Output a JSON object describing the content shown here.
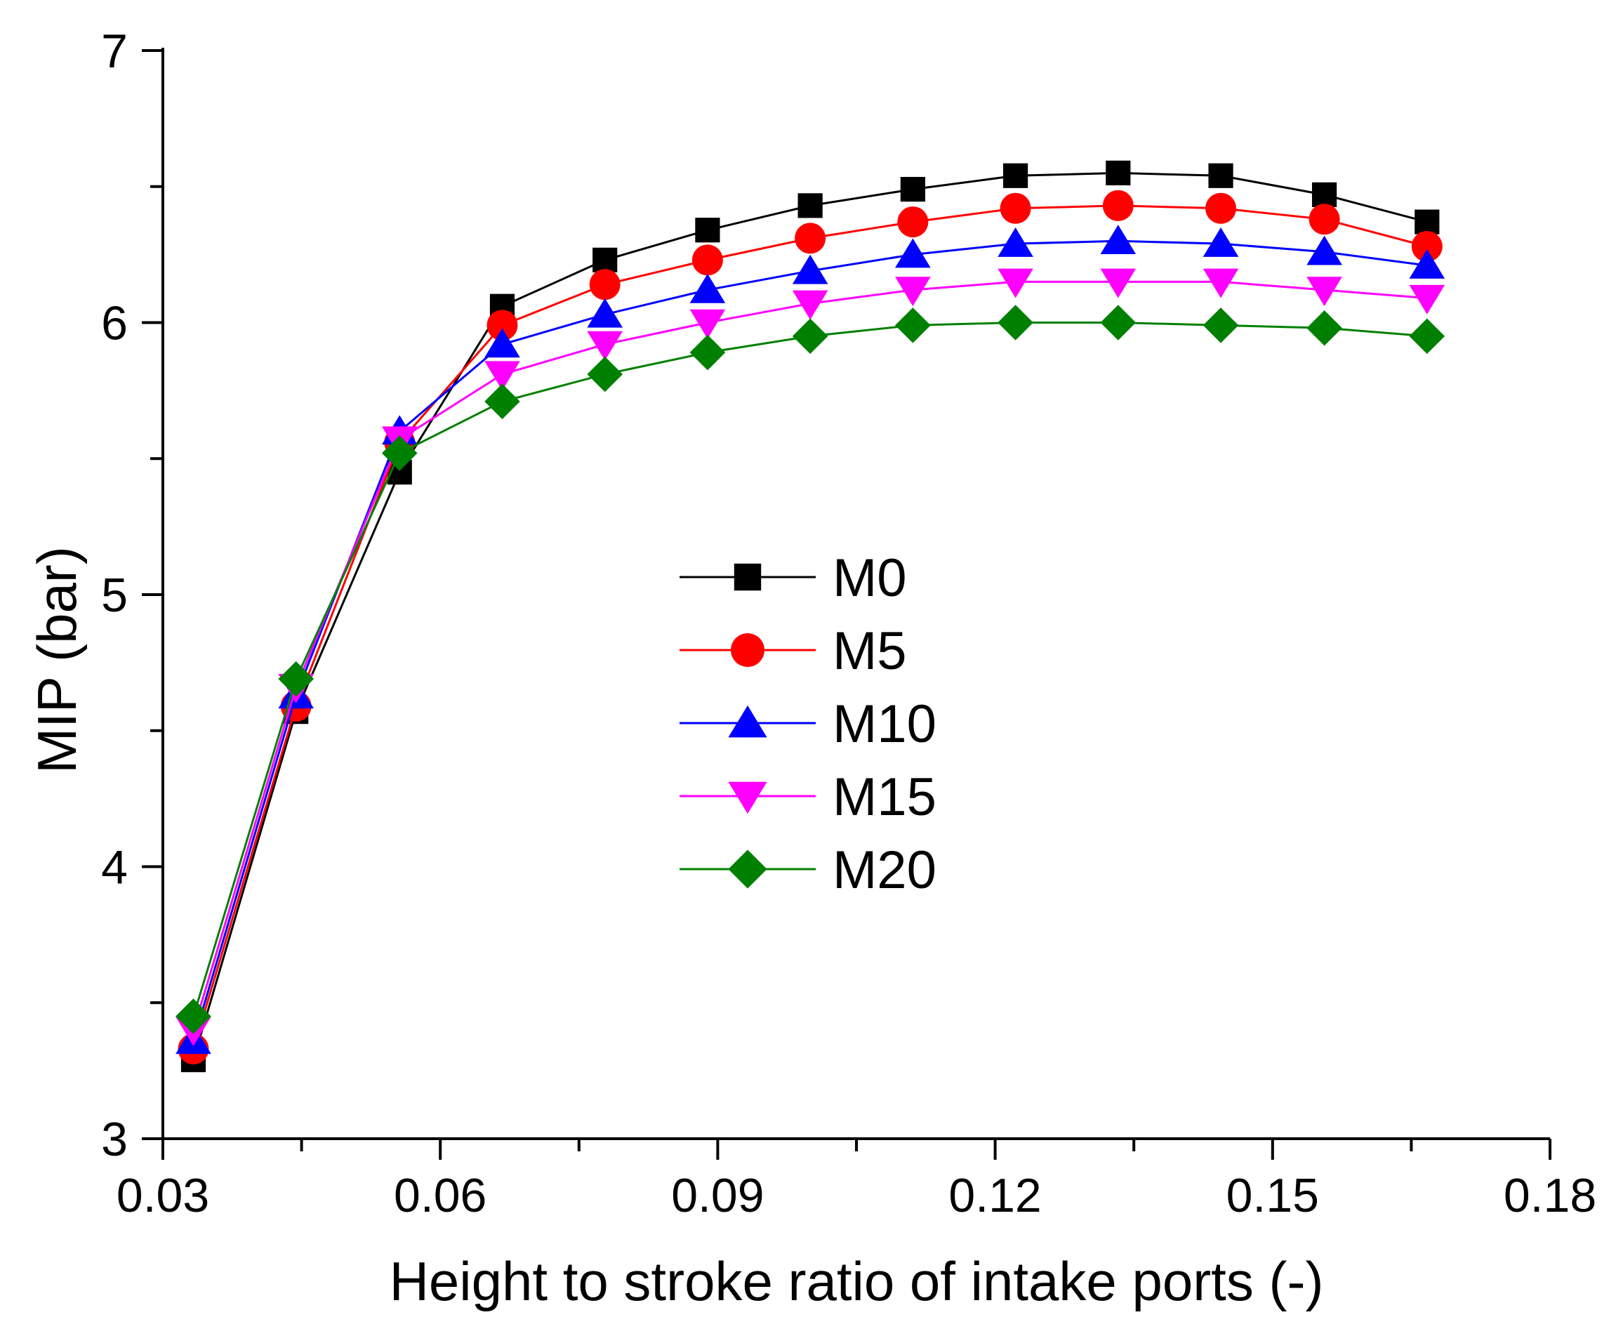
{
  "chart_data": {
    "type": "line",
    "title": "",
    "xlabel": "Height to stroke ratio of intake ports (-)",
    "ylabel": "MIP (bar)",
    "xlim": [
      0.03,
      0.18
    ],
    "ylim": [
      3,
      7
    ],
    "xticks": [
      0.03,
      0.06,
      0.09,
      0.12,
      0.15,
      0.18
    ],
    "xtick_labels": [
      "0.03",
      "0.06",
      "0.09",
      "0.12",
      "0.15",
      "0.18"
    ],
    "yticks": [
      3,
      4,
      5,
      6,
      7
    ],
    "ytick_labels": [
      "3",
      "4",
      "5",
      "6",
      "7"
    ],
    "grid": false,
    "legend_position": "center",
    "x": [
      0.0333,
      0.0444,
      0.0556,
      0.0667,
      0.0778,
      0.0889,
      0.1,
      0.1111,
      0.1222,
      0.1333,
      0.1444,
      0.1556,
      0.1667
    ],
    "series": [
      {
        "name": "M0",
        "color": "#000000",
        "marker": "square",
        "values": [
          3.29,
          4.57,
          5.45,
          6.06,
          6.23,
          6.34,
          6.43,
          6.49,
          6.54,
          6.55,
          6.54,
          6.47,
          6.37
        ]
      },
      {
        "name": "M5",
        "color": "#ff0000",
        "marker": "circle",
        "values": [
          3.33,
          4.59,
          5.56,
          5.99,
          6.14,
          6.23,
          6.31,
          6.37,
          6.42,
          6.43,
          6.42,
          6.38,
          6.28
        ]
      },
      {
        "name": "M10",
        "color": "#0000ff",
        "marker": "triangle-up",
        "values": [
          3.36,
          4.63,
          5.6,
          5.92,
          6.03,
          6.12,
          6.19,
          6.25,
          6.29,
          6.3,
          6.29,
          6.26,
          6.21
        ]
      },
      {
        "name": "M15",
        "color": "#ff00ff",
        "marker": "triangle-down",
        "values": [
          3.4,
          4.66,
          5.57,
          5.81,
          5.92,
          6.0,
          6.07,
          6.12,
          6.15,
          6.15,
          6.15,
          6.12,
          6.09
        ]
      },
      {
        "name": "M20",
        "color": "#008000",
        "marker": "diamond",
        "values": [
          3.45,
          4.69,
          5.52,
          5.71,
          5.81,
          5.89,
          5.95,
          5.99,
          6.0,
          6.0,
          5.99,
          5.98,
          5.95
        ]
      }
    ]
  }
}
